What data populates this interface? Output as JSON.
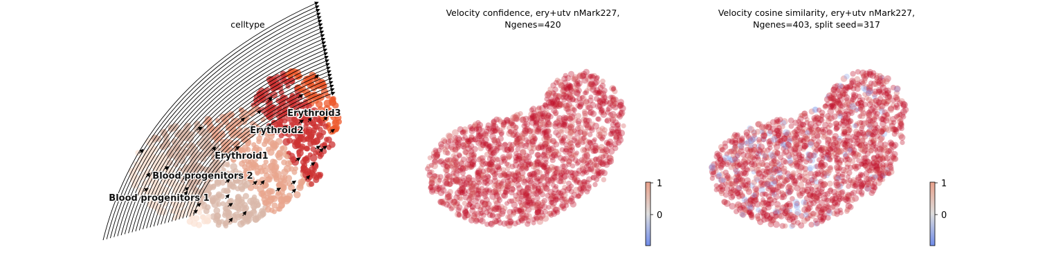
{
  "chart_data": [
    {
      "type": "scatter",
      "subtype": "umap-velocity-stream",
      "title": "celltype",
      "colormap": "Reds",
      "stream_color": "#000000",
      "groups": [
        {
          "name": "Blood progenitors 1",
          "color": "#fbe3d6"
        },
        {
          "name": "Blood progenitors 2",
          "color": "#d9b8a9"
        },
        {
          "name": "Erythroid1",
          "color": "#e8a58e"
        },
        {
          "name": "Erythroid2",
          "color": "#cc3333"
        },
        {
          "name": "Erythroid3",
          "color": "#ee5a2c"
        }
      ],
      "grid": false,
      "axes_visible": false
    },
    {
      "type": "scatter",
      "subtype": "umap-continuous",
      "title_line1": "Velocity confidence, ery+utv nMark227,",
      "title_line2": "Ngenes=420",
      "colormap": "coolwarm",
      "dominant_color": "#c0102a",
      "colorbar": {
        "ticks": [
          "1",
          "0"
        ]
      },
      "grid": false,
      "axes_visible": false
    },
    {
      "type": "scatter",
      "subtype": "umap-continuous",
      "title_line1": "Velocity cosine similarity, ery+utv nMark227,",
      "title_line2": "Ngenes=403, split seed=317",
      "colormap": "coolwarm",
      "dominant_color": "#c0102a",
      "minor_color": "#8fa8ef",
      "colorbar": {
        "ticks": [
          "1",
          "0"
        ]
      },
      "grid": false,
      "axes_visible": false
    }
  ]
}
